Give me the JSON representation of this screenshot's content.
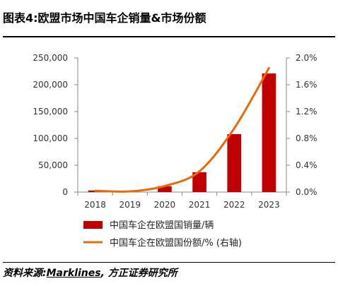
{
  "header": {
    "title": "图表4:欧盟市场中国车企销量&市场份额"
  },
  "footer": {
    "source_prefix": "资料来源:",
    "source_brand": "Marklines",
    "source_suffix": ", 方正证券研究所"
  },
  "colors": {
    "bar": "#c00000",
    "line": "#e46c0a"
  },
  "chart_data": {
    "type": "bar",
    "categories": [
      "2018",
      "2019",
      "2020",
      "2021",
      "2022",
      "2023"
    ],
    "series": [
      {
        "name": "中国车企在欧盟国销量/辆",
        "type": "bar",
        "axis": "left",
        "values": [
          3000,
          1000,
          11000,
          37000,
          108000,
          221000
        ]
      },
      {
        "name": "中国车企在欧盟国份额/% (右轴)",
        "type": "line",
        "axis": "right",
        "values": [
          0.02,
          0.01,
          0.09,
          0.31,
          0.95,
          1.85
        ]
      }
    ],
    "y_left": {
      "range": [
        0,
        250000
      ],
      "ticks": [
        "0",
        "50,000",
        "100,000",
        "150,000",
        "200,000",
        "250,000"
      ]
    },
    "y_right": {
      "range": [
        0,
        2.0
      ],
      "ticks": [
        "0.0%",
        "0.4%",
        "0.8%",
        "1.2%",
        "1.6%",
        "2.0%"
      ]
    },
    "grid": false,
    "legend": "bottom"
  }
}
